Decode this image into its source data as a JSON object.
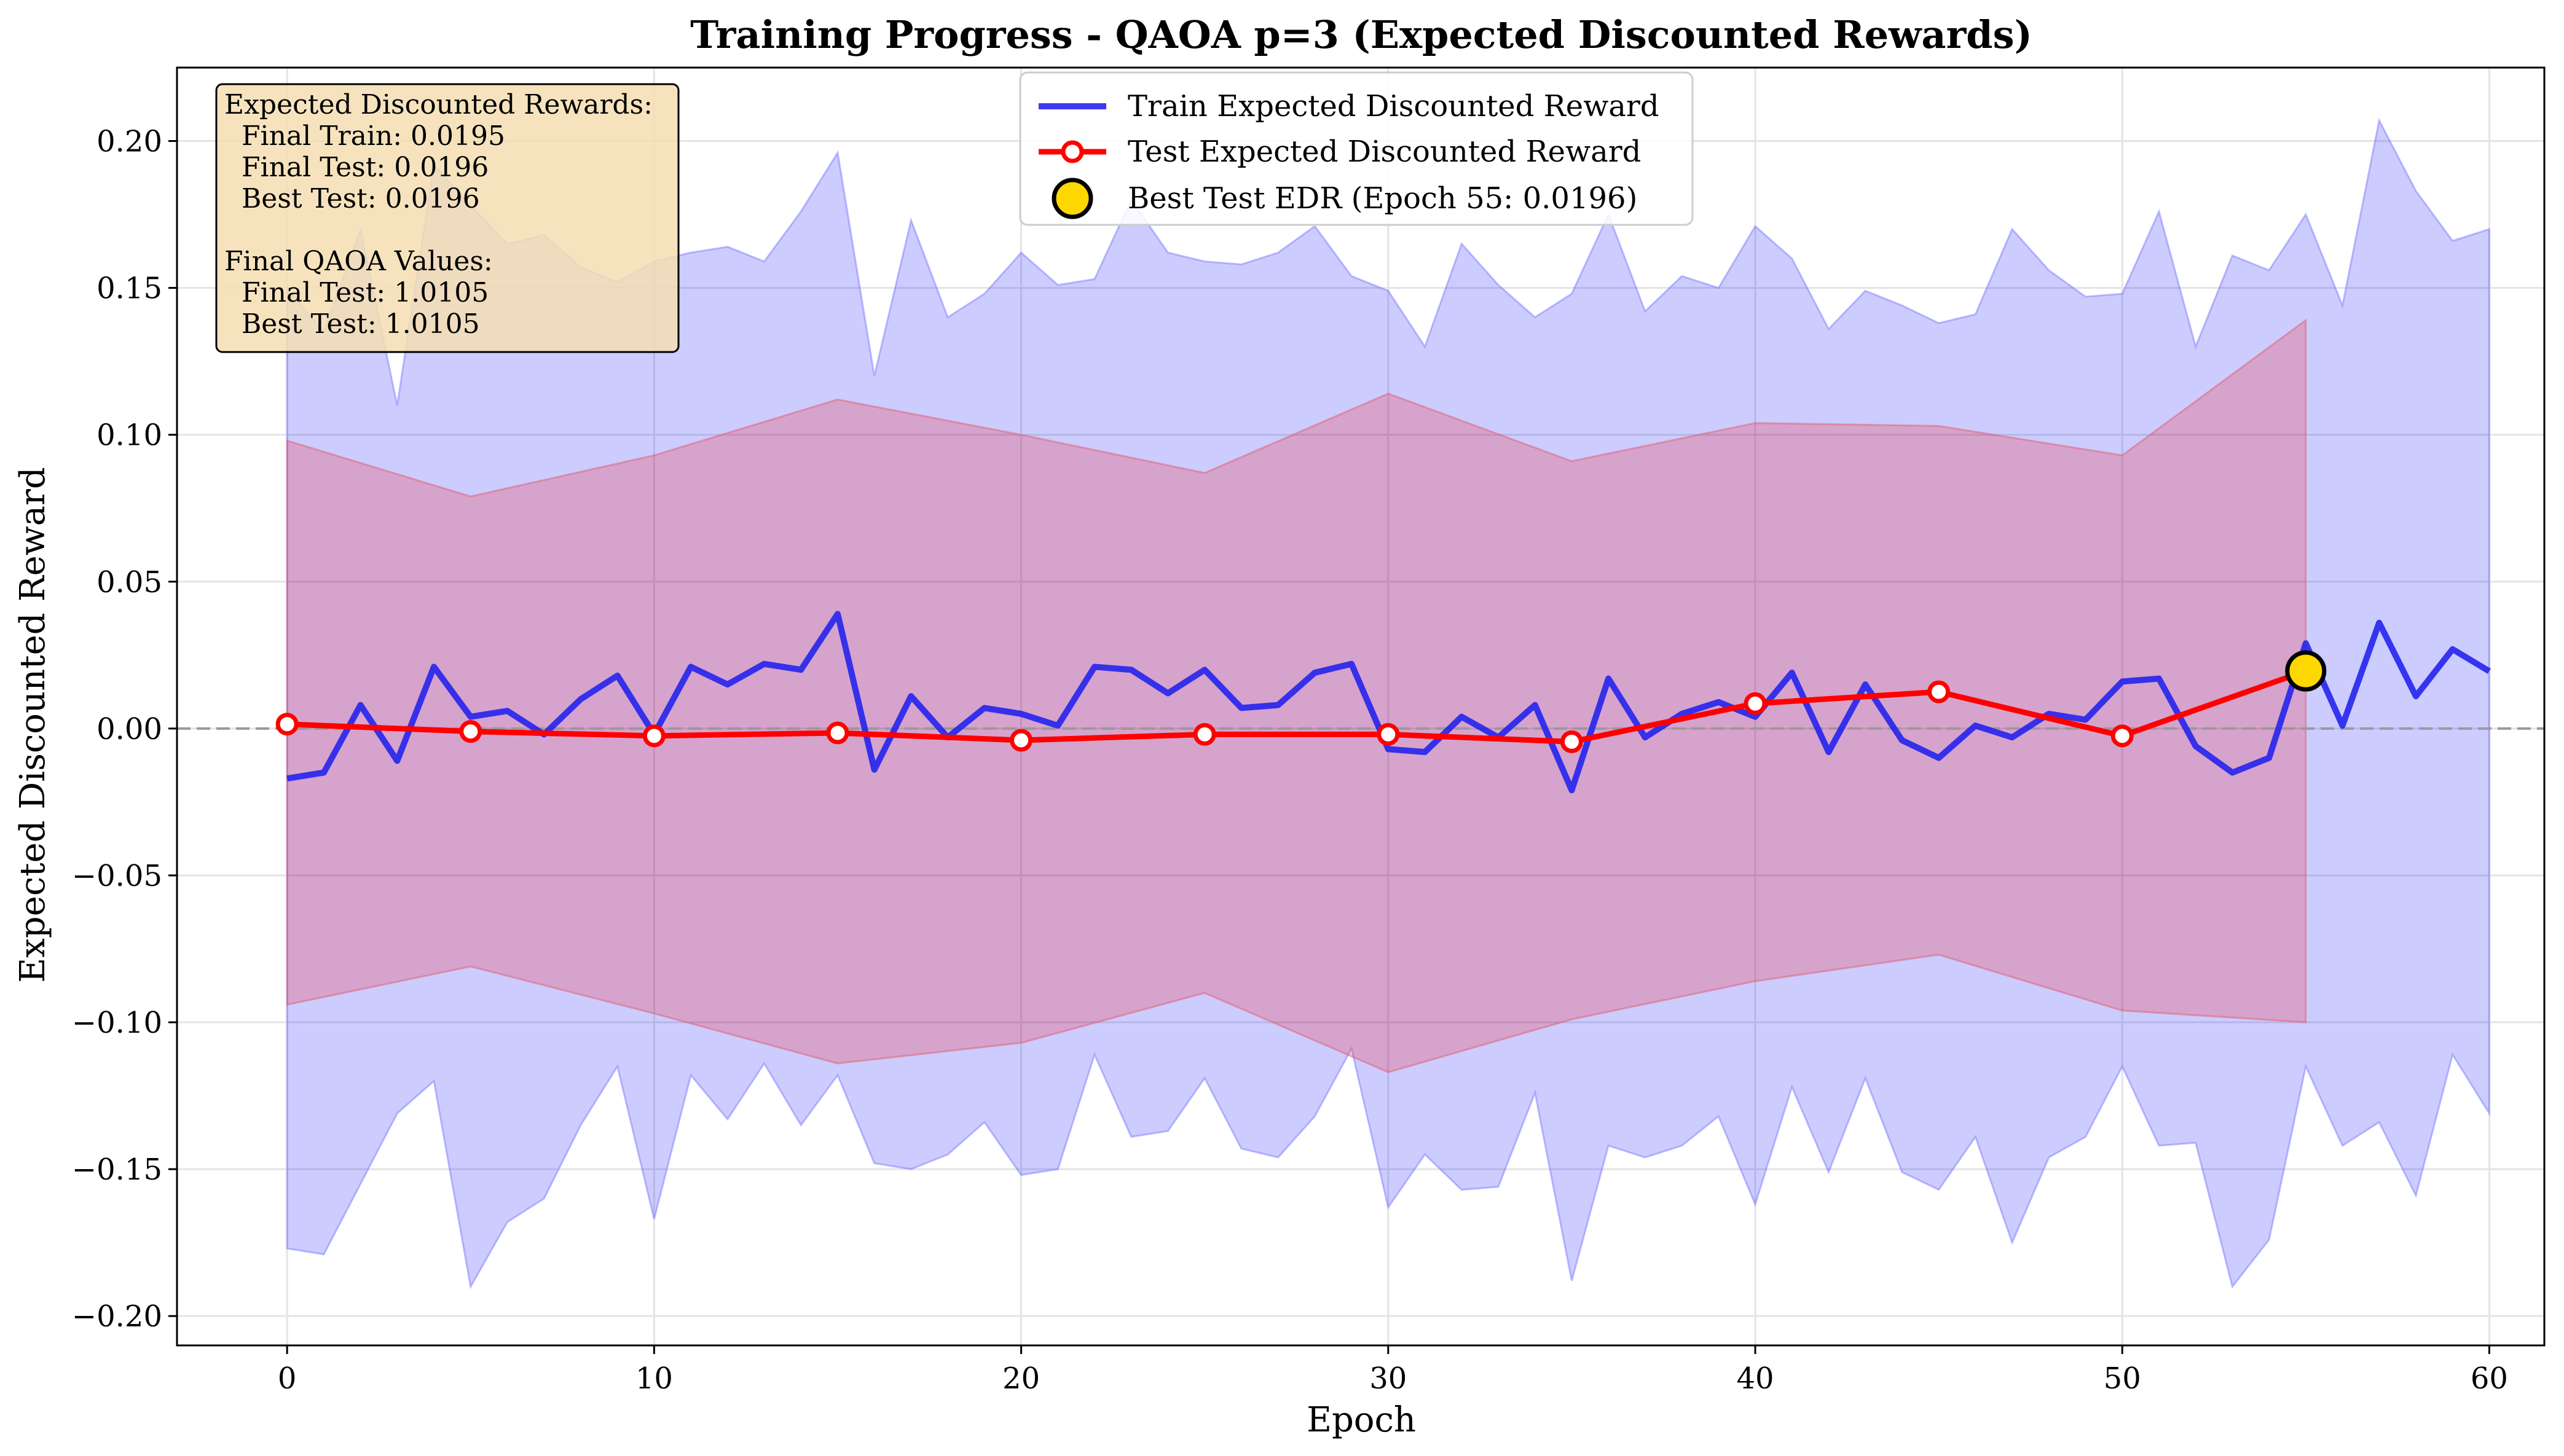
{
  "chart_data": {
    "type": "line",
    "title": "Training Progress - QAOA p=3 (Expected Discounted Rewards)",
    "xlabel": "Epoch",
    "ylabel": "Expected Discounted Reward",
    "xlim": [
      -3,
      61.5
    ],
    "ylim": [
      -0.21,
      0.225
    ],
    "xticks": [
      0,
      10,
      20,
      30,
      40,
      50,
      60
    ],
    "xtick_labels": [
      "0",
      "10",
      "20",
      "30",
      "40",
      "50",
      "60"
    ],
    "yticks": [
      -0.2,
      -0.15,
      -0.1,
      -0.05,
      0.0,
      0.05,
      0.1,
      0.15,
      0.2
    ],
    "ytick_labels": [
      "−0.20",
      "−0.15",
      "−0.10",
      "−0.05",
      "0.00",
      "0.05",
      "0.10",
      "0.15",
      "0.20"
    ],
    "grid": true,
    "reference_line": {
      "y": 0.0,
      "style": "dashed",
      "color": "#999999"
    },
    "legend": {
      "position": "top-center",
      "entries": [
        "Train Expected Discounted Reward",
        "Test Expected Discounted Reward",
        "Best Test EDR (Epoch 55: 0.0196)"
      ]
    },
    "series": [
      {
        "name": "Train Expected Discounted Reward",
        "color": "#2020ee",
        "x": [
          0,
          1,
          2,
          3,
          4,
          5,
          6,
          7,
          8,
          9,
          10,
          11,
          12,
          13,
          14,
          15,
          16,
          17,
          18,
          19,
          20,
          21,
          22,
          23,
          24,
          25,
          26,
          27,
          28,
          29,
          30,
          31,
          32,
          33,
          34,
          35,
          36,
          37,
          38,
          39,
          40,
          41,
          42,
          43,
          44,
          45,
          46,
          47,
          48,
          49,
          50,
          51,
          52,
          53,
          54,
          55,
          56,
          57,
          58,
          59,
          60
        ],
        "y": [
          -0.017,
          -0.015,
          0.008,
          -0.011,
          0.021,
          0.004,
          0.006,
          -0.002,
          0.01,
          0.018,
          -0.002,
          0.021,
          0.015,
          0.022,
          0.02,
          0.039,
          -0.014,
          0.011,
          -0.003,
          0.007,
          0.005,
          0.001,
          0.021,
          0.02,
          0.012,
          0.02,
          0.007,
          0.008,
          0.019,
          0.022,
          -0.007,
          -0.008,
          0.004,
          -0.003,
          0.008,
          -0.021,
          0.017,
          -0.003,
          0.005,
          0.009,
          0.004,
          0.019,
          -0.008,
          0.015,
          -0.004,
          -0.01,
          0.001,
          -0.003,
          0.005,
          0.003,
          0.016,
          0.017,
          -0.006,
          -0.015,
          -0.01,
          0.029,
          0.001,
          0.036,
          0.011,
          0.027,
          0.0195
        ],
        "band_upper": [
          0.15,
          0.135,
          0.17,
          0.11,
          0.192,
          0.178,
          0.165,
          0.168,
          0.157,
          0.152,
          0.159,
          0.162,
          0.164,
          0.159,
          0.176,
          0.196,
          0.12,
          0.173,
          0.14,
          0.148,
          0.162,
          0.151,
          0.153,
          0.18,
          0.162,
          0.159,
          0.158,
          0.162,
          0.171,
          0.154,
          0.149,
          0.13,
          0.165,
          0.151,
          0.14,
          0.148,
          0.175,
          0.142,
          0.154,
          0.15,
          0.171,
          0.16,
          0.136,
          0.149,
          0.144,
          0.138,
          0.141,
          0.17,
          0.156,
          0.147,
          0.148,
          0.176,
          0.13,
          0.161,
          0.156,
          0.175,
          0.144,
          0.207,
          0.183,
          0.166,
          0.17
        ],
        "band_lower": [
          -0.177,
          -0.179,
          -0.155,
          -0.131,
          -0.12,
          -0.19,
          -0.168,
          -0.16,
          -0.135,
          -0.115,
          -0.167,
          -0.118,
          -0.133,
          -0.114,
          -0.135,
          -0.118,
          -0.148,
          -0.15,
          -0.145,
          -0.134,
          -0.152,
          -0.15,
          -0.111,
          -0.139,
          -0.137,
          -0.119,
          -0.143,
          -0.146,
          -0.132,
          -0.109,
          -0.163,
          -0.145,
          -0.157,
          -0.156,
          -0.124,
          -0.188,
          -0.142,
          -0.146,
          -0.142,
          -0.132,
          -0.162,
          -0.122,
          -0.151,
          -0.119,
          -0.151,
          -0.157,
          -0.139,
          -0.175,
          -0.146,
          -0.139,
          -0.115,
          -0.142,
          -0.141,
          -0.19,
          -0.174,
          -0.115,
          -0.142,
          -0.134,
          -0.159,
          -0.111,
          -0.131
        ]
      },
      {
        "name": "Test Expected Discounted Reward",
        "color": "#ff0000",
        "x": [
          0,
          5,
          10,
          15,
          20,
          25,
          30,
          35,
          40,
          45,
          50,
          55
        ],
        "y": [
          0.0015,
          -0.001,
          -0.0025,
          -0.0015,
          -0.004,
          -0.002,
          -0.002,
          -0.0045,
          0.0085,
          0.0125,
          -0.0025,
          0.0196
        ],
        "band_upper": [
          0.098,
          0.079,
          0.093,
          0.112,
          0.1,
          0.087,
          0.114,
          0.091,
          0.104,
          0.103,
          0.093,
          0.139
        ],
        "band_lower": [
          -0.094,
          -0.081,
          -0.097,
          -0.114,
          -0.107,
          -0.09,
          -0.117,
          -0.099,
          -0.086,
          -0.077,
          -0.096,
          -0.1
        ]
      }
    ],
    "best_point": {
      "name": "Best Test EDR (Epoch 55: 0.0196)",
      "x": 55,
      "y": 0.0196,
      "color": "#ffd700"
    },
    "annotation": {
      "lines": [
        "Expected Discounted Rewards:",
        "  Final Train: 0.0195",
        "  Final Test: 0.0196",
        "  Best Test: 0.0196",
        "",
        "Final QAOA Values:",
        "  Final Test: 1.0105",
        "  Best Test: 1.0105"
      ]
    }
  }
}
